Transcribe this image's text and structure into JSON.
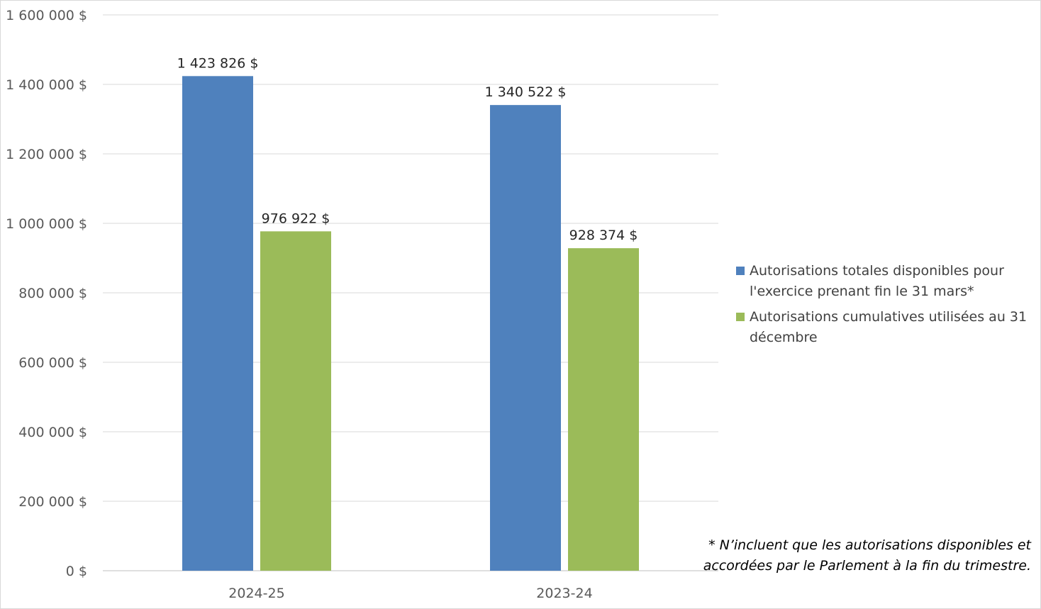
{
  "chart_data": {
    "type": "bar",
    "categories": [
      "2024-25",
      "2023-24"
    ],
    "series": [
      {
        "name": "Autorisations totales disponibles pour l'exercice prenant fin le 31 mars*",
        "values": [
          1423826,
          1340522
        ],
        "labels": [
          "1 423 826 $",
          "1 340 522 $"
        ],
        "color": "#4f81bd"
      },
      {
        "name": "Autorisations cumulatives utilisées au 31 décembre",
        "values": [
          976922,
          928374
        ],
        "labels": [
          "976 922 $",
          "928 374 $"
        ],
        "color": "#9bbb59"
      }
    ],
    "ylim": [
      0,
      1600000
    ],
    "yticks": [
      0,
      200000,
      400000,
      600000,
      800000,
      1000000,
      1200000,
      1400000,
      1600000
    ],
    "ytick_labels": [
      "0 $",
      "200 000 $",
      "400 000 $",
      "600 000 $",
      "800 000 $",
      "1 000 000 $",
      "1 200 000 $",
      "1 400 000 $",
      "1 600 000 $"
    ],
    "grid": true,
    "legend_position": "right",
    "title": "",
    "xlabel": "",
    "ylabel": ""
  },
  "legend": {
    "item1": "Autorisations totales disponibles pour l'exercice prenant fin le 31 mars*",
    "item2": "Autorisations cumulatives utilisées au 31 décembre"
  },
  "note": {
    "line1": "* N’incluent que les autorisations disponibles et",
    "line2": "accordées par le Parlement à la fin du trimestre."
  },
  "colors": {
    "series1": "#4f81bd",
    "series2": "#9bbb59",
    "grid": "#d9d9d9"
  }
}
